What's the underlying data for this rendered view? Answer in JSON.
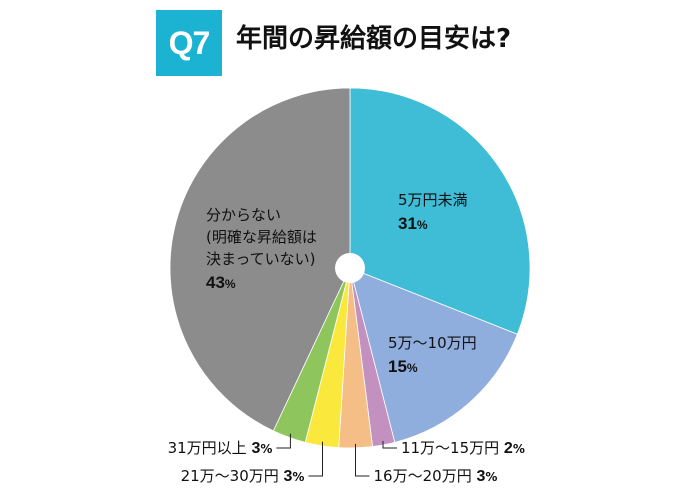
{
  "header": {
    "badge": "Q7",
    "badge_color": "#1bb3d1",
    "question": "年間の昇給額の目安は?"
  },
  "chart_data": {
    "type": "pie",
    "title": "年間の昇給額の目安は?",
    "slices": [
      {
        "lines": [
          "5万円未満"
        ],
        "value": 31,
        "value_text": "31",
        "unit": "%",
        "color": "#3fbcd6",
        "label_color": "#111111"
      },
      {
        "lines": [
          "5万〜10万円"
        ],
        "value": 15,
        "value_text": "15",
        "unit": "%",
        "color": "#8faedd",
        "label_color": "#111111"
      },
      {
        "lines": [
          "11万〜15万円"
        ],
        "value": 2,
        "value_text": "2",
        "unit": "%",
        "color": "#c391c0",
        "label_color": "#111111"
      },
      {
        "lines": [
          "16万〜20万円"
        ],
        "value": 3,
        "value_text": "3",
        "unit": "%",
        "color": "#f5be87",
        "label_color": "#111111"
      },
      {
        "lines": [
          "21万〜30万円"
        ],
        "value": 3,
        "value_text": "3",
        "unit": "%",
        "color": "#fbe83c",
        "label_color": "#111111"
      },
      {
        "lines": [
          "31万円以上"
        ],
        "value": 3,
        "value_text": "3",
        "unit": "%",
        "color": "#8ec65d",
        "label_color": "#111111"
      },
      {
        "lines": [
          "分からない",
          "(明確な昇給額は",
          "決まっていない)"
        ],
        "value": 43,
        "value_text": "43",
        "unit": "%",
        "color": "#8c8c8c",
        "label_color": "#111111"
      }
    ]
  }
}
